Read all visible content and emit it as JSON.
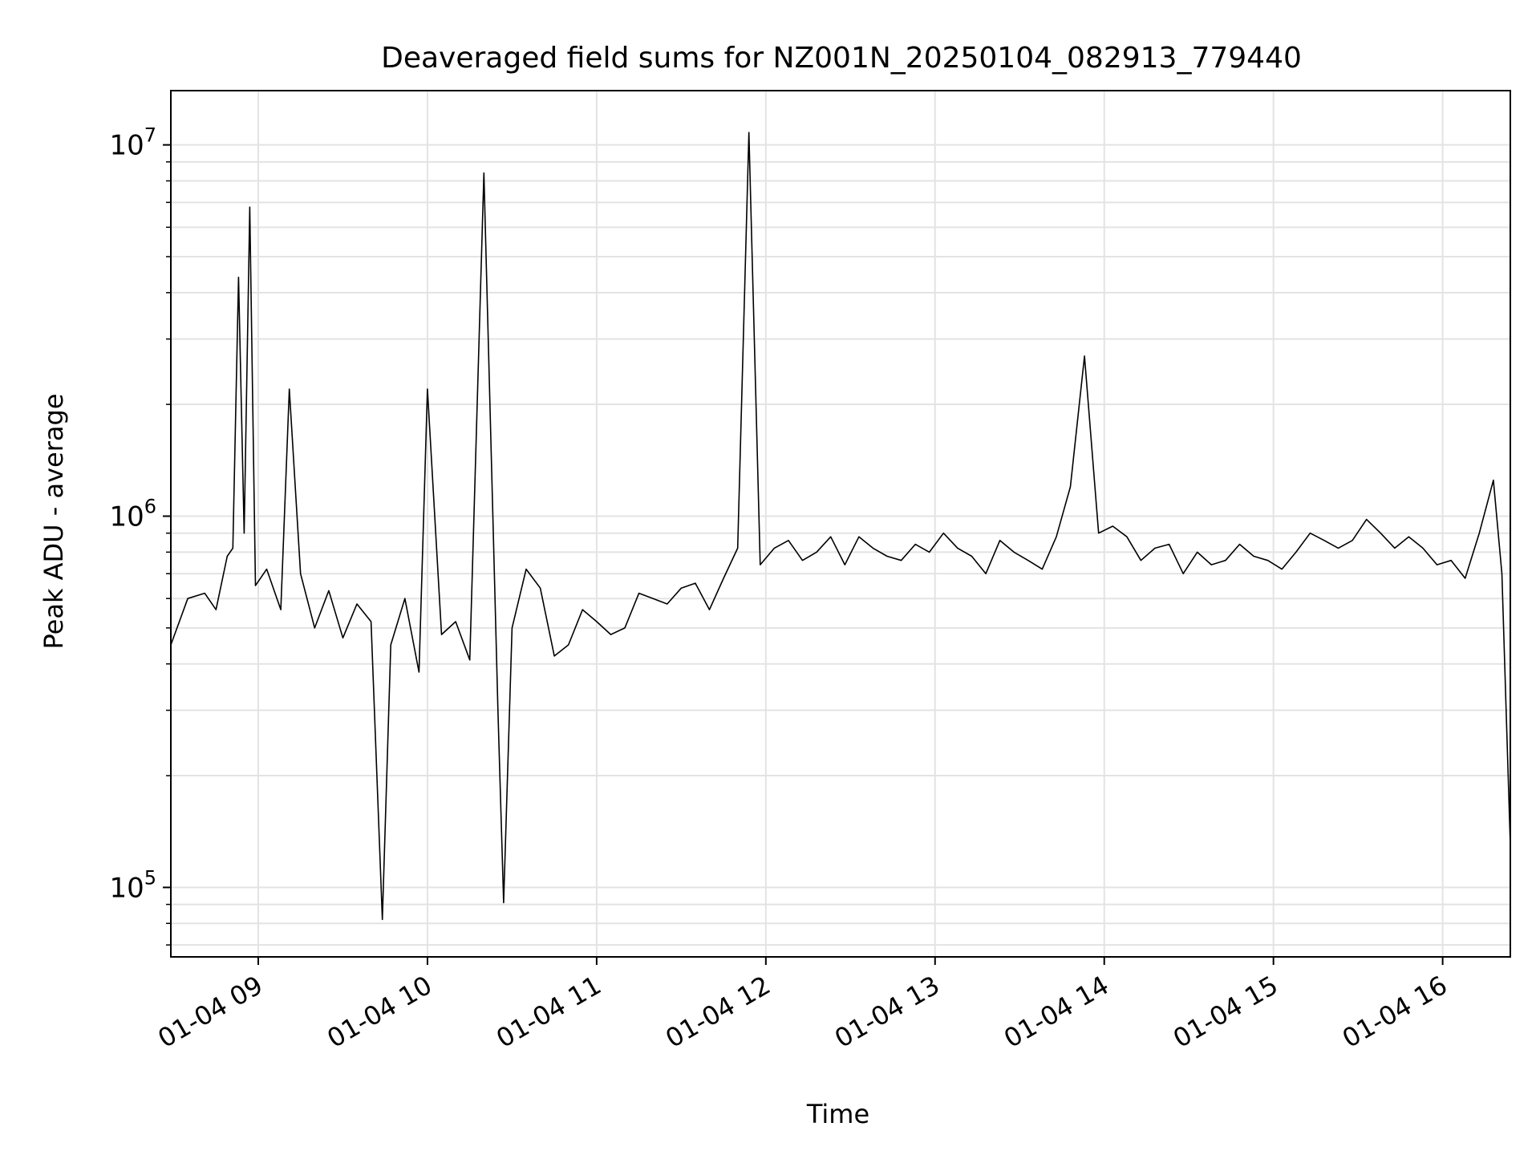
{
  "chart_data": {
    "type": "line",
    "title": "Deaveraged field sums for NZ001N_20250104_082913_779440",
    "xlabel": "Time",
    "ylabel": "Peak ADU - average",
    "yscale": "log",
    "ylim": [
      65000,
      14000000
    ],
    "xlim": [
      "2025-01-04 08:29",
      "2025-01-04 16:24"
    ],
    "grid": true,
    "line_color": "#000000",
    "x_ticks": [
      {
        "t": "2025-01-04 09:00",
        "label": "01-04 09"
      },
      {
        "t": "2025-01-04 10:00",
        "label": "01-04 10"
      },
      {
        "t": "2025-01-04 11:00",
        "label": "01-04 11"
      },
      {
        "t": "2025-01-04 12:00",
        "label": "01-04 12"
      },
      {
        "t": "2025-01-04 13:00",
        "label": "01-04 13"
      },
      {
        "t": "2025-01-04 14:00",
        "label": "01-04 14"
      },
      {
        "t": "2025-01-04 15:00",
        "label": "01-04 15"
      },
      {
        "t": "2025-01-04 16:00",
        "label": "01-04 16"
      }
    ],
    "y_ticks": [
      {
        "value": 100000,
        "base": "10",
        "exp": "5"
      },
      {
        "value": 1000000,
        "base": "10",
        "exp": "6"
      },
      {
        "value": 10000000,
        "base": "10",
        "exp": "7"
      }
    ],
    "series": [
      {
        "x": [
          "2025-01-04 08:29",
          "2025-01-04 08:35",
          "2025-01-04 08:41",
          "2025-01-04 08:45",
          "2025-01-04 08:49",
          "2025-01-04 08:51",
          "2025-01-04 08:53",
          "2025-01-04 08:55",
          "2025-01-04 08:57",
          "2025-01-04 08:59",
          "2025-01-04 09:03",
          "2025-01-04 09:08",
          "2025-01-04 09:11",
          "2025-01-04 09:15",
          "2025-01-04 09:20",
          "2025-01-04 09:25",
          "2025-01-04 09:30",
          "2025-01-04 09:35",
          "2025-01-04 09:40",
          "2025-01-04 09:44",
          "2025-01-04 09:47",
          "2025-01-04 09:52",
          "2025-01-04 09:57",
          "2025-01-04 10:00",
          "2025-01-04 10:05",
          "2025-01-04 10:10",
          "2025-01-04 10:15",
          "2025-01-04 10:20",
          "2025-01-04 10:25",
          "2025-01-04 10:27",
          "2025-01-04 10:30",
          "2025-01-04 10:35",
          "2025-01-04 10:40",
          "2025-01-04 10:45",
          "2025-01-04 10:50",
          "2025-01-04 10:55",
          "2025-01-04 11:00",
          "2025-01-04 11:05",
          "2025-01-04 11:10",
          "2025-01-04 11:15",
          "2025-01-04 11:20",
          "2025-01-04 11:25",
          "2025-01-04 11:30",
          "2025-01-04 11:35",
          "2025-01-04 11:40",
          "2025-01-04 11:45",
          "2025-01-04 11:50",
          "2025-01-04 11:54",
          "2025-01-04 11:58",
          "2025-01-04 12:03",
          "2025-01-04 12:08",
          "2025-01-04 12:13",
          "2025-01-04 12:18",
          "2025-01-04 12:23",
          "2025-01-04 12:28",
          "2025-01-04 12:33",
          "2025-01-04 12:38",
          "2025-01-04 12:43",
          "2025-01-04 12:48",
          "2025-01-04 12:53",
          "2025-01-04 12:58",
          "2025-01-04 13:03",
          "2025-01-04 13:08",
          "2025-01-04 13:13",
          "2025-01-04 13:18",
          "2025-01-04 13:23",
          "2025-01-04 13:28",
          "2025-01-04 13:33",
          "2025-01-04 13:38",
          "2025-01-04 13:43",
          "2025-01-04 13:48",
          "2025-01-04 13:53",
          "2025-01-04 13:58",
          "2025-01-04 14:03",
          "2025-01-04 14:08",
          "2025-01-04 14:13",
          "2025-01-04 14:18",
          "2025-01-04 14:23",
          "2025-01-04 14:28",
          "2025-01-04 14:33",
          "2025-01-04 14:38",
          "2025-01-04 14:43",
          "2025-01-04 14:48",
          "2025-01-04 14:53",
          "2025-01-04 14:58",
          "2025-01-04 15:03",
          "2025-01-04 15:08",
          "2025-01-04 15:13",
          "2025-01-04 15:18",
          "2025-01-04 15:23",
          "2025-01-04 15:28",
          "2025-01-04 15:33",
          "2025-01-04 15:38",
          "2025-01-04 15:43",
          "2025-01-04 15:48",
          "2025-01-04 15:53",
          "2025-01-04 15:58",
          "2025-01-04 16:03",
          "2025-01-04 16:08",
          "2025-01-04 16:13",
          "2025-01-04 16:18",
          "2025-01-04 16:21",
          "2025-01-04 16:24"
        ],
        "y": [
          450000,
          600000,
          620000,
          560000,
          780000,
          820000,
          4400000,
          900000,
          6800000,
          650000,
          720000,
          560000,
          2200000,
          700000,
          500000,
          630000,
          470000,
          580000,
          520000,
          82000,
          450000,
          600000,
          380000,
          2200000,
          480000,
          520000,
          410000,
          8400000,
          300000,
          91000,
          500000,
          720000,
          640000,
          420000,
          450000,
          560000,
          520000,
          480000,
          500000,
          620000,
          600000,
          580000,
          640000,
          660000,
          560000,
          680000,
          820000,
          10800000,
          740000,
          820000,
          860000,
          760000,
          800000,
          880000,
          740000,
          880000,
          820000,
          780000,
          760000,
          840000,
          800000,
          900000,
          820000,
          780000,
          700000,
          860000,
          800000,
          760000,
          720000,
          880000,
          1200000,
          2700000,
          900000,
          940000,
          880000,
          760000,
          820000,
          840000,
          700000,
          800000,
          740000,
          760000,
          840000,
          780000,
          760000,
          720000,
          800000,
          900000,
          860000,
          820000,
          860000,
          980000,
          900000,
          820000,
          880000,
          820000,
          740000,
          760000,
          680000,
          900000,
          1250000,
          700000,
          130000
        ]
      }
    ]
  }
}
